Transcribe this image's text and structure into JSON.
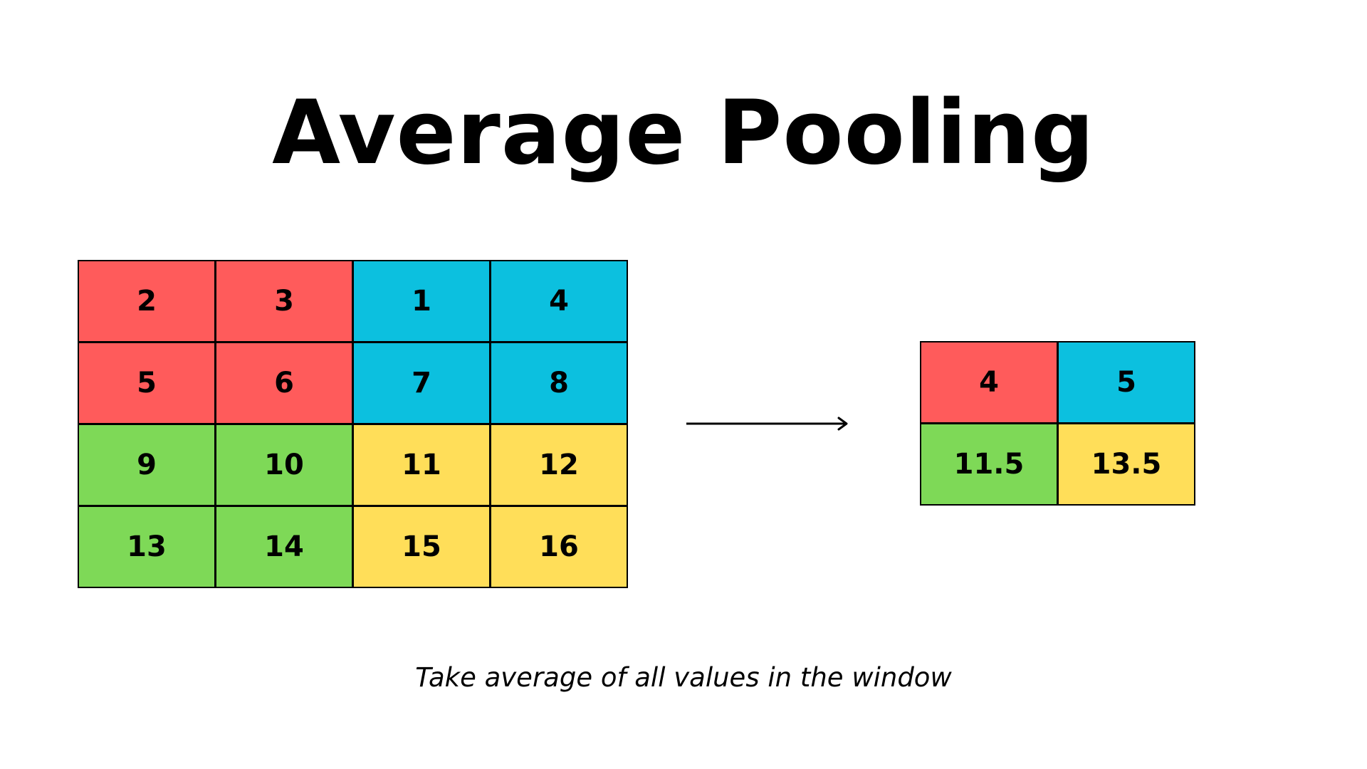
{
  "title": "Average Pooling",
  "caption": "Take average of all values in the window",
  "colors": {
    "red": "#ff5b5b",
    "blue": "#0cc0df",
    "green": "#7ed957",
    "yellow": "#ffde59",
    "border": "#000000"
  },
  "input_grid": {
    "rows": [
      [
        {
          "value": "2",
          "color": "red"
        },
        {
          "value": "3",
          "color": "red"
        },
        {
          "value": "1",
          "color": "blue"
        },
        {
          "value": "4",
          "color": "blue"
        }
      ],
      [
        {
          "value": "5",
          "color": "red"
        },
        {
          "value": "6",
          "color": "red"
        },
        {
          "value": "7",
          "color": "blue"
        },
        {
          "value": "8",
          "color": "blue"
        }
      ],
      [
        {
          "value": "9",
          "color": "green"
        },
        {
          "value": "10",
          "color": "green"
        },
        {
          "value": "11",
          "color": "yellow"
        },
        {
          "value": "12",
          "color": "yellow"
        }
      ],
      [
        {
          "value": "13",
          "color": "green"
        },
        {
          "value": "14",
          "color": "green"
        },
        {
          "value": "15",
          "color": "yellow"
        },
        {
          "value": "16",
          "color": "yellow"
        }
      ]
    ]
  },
  "output_grid": {
    "rows": [
      [
        {
          "value": "4",
          "color": "red"
        },
        {
          "value": "5",
          "color": "blue"
        }
      ],
      [
        {
          "value": "11.5",
          "color": "green"
        },
        {
          "value": "13.5",
          "color": "yellow"
        }
      ]
    ]
  }
}
